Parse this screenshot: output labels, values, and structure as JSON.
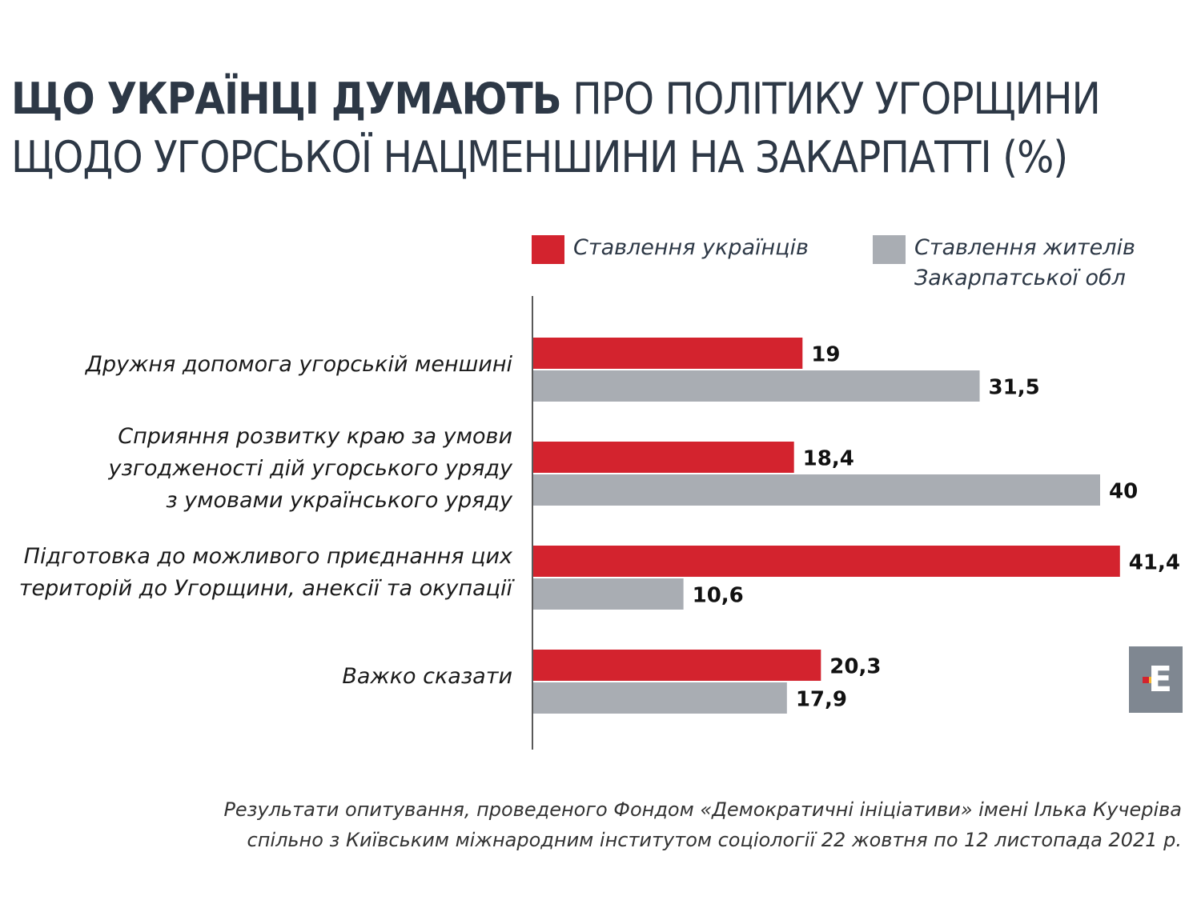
{
  "title": {
    "bold": "ЩО УКРАЇНЦІ ДУМАЮТЬ",
    "light": " ПРО ПОЛІТИКУ УГОРЩИНИ",
    "line2": "ЩОДО УГОРСЬКОЇ НАЦМЕНШИНИ НА ЗАКАРПАТТІ (%)"
  },
  "logo": "Е",
  "source": [
    "Результати опитування, проведеного Фондом «Демократичні ініціативи» імені Ілька Кучеріва",
    "спільно з Київським міжнародним інститутом соціології 22 жовтня по 12 листопада 2021 р."
  ],
  "chart_data": {
    "type": "bar",
    "orientation": "horizontal",
    "title": "ЩО УКРАЇНЦІ ДУМАЮТЬ ПРО ПОЛІТИКУ УГОРЩИНИ ЩОДО УГОРСЬКОЇ НАЦМЕНШИНИ НА ЗАКАРПАТТІ (%)",
    "categories": [
      [
        "Дружня допомога угорській меншині"
      ],
      [
        "Сприяння розвитку краю за умови",
        "узгодженості дій угорського уряду",
        "з умовами українського уряду"
      ],
      [
        "Підготовка до можливого приєднання цих",
        "територій до Угорщини, анексії та окупації"
      ],
      [
        "Важко сказати"
      ]
    ],
    "series": [
      {
        "name": "Ставлення українців",
        "color": "#d3232e",
        "values": [
          19,
          18.4,
          41.4,
          20.3
        ],
        "labels": [
          "19",
          "18,4",
          "41,4",
          "20,3"
        ]
      },
      {
        "name": "Ставлення жителів Закарпатської обл",
        "name_lines": [
          "Ставлення жителів",
          "Закарпатської обл"
        ],
        "color": "#a9adb3",
        "values": [
          31.5,
          40,
          10.6,
          17.9
        ],
        "labels": [
          "31,5",
          "40",
          "10,6",
          "17,9"
        ]
      }
    ],
    "xlim": [
      0,
      42
    ],
    "legend": "top-right",
    "grid": false
  }
}
